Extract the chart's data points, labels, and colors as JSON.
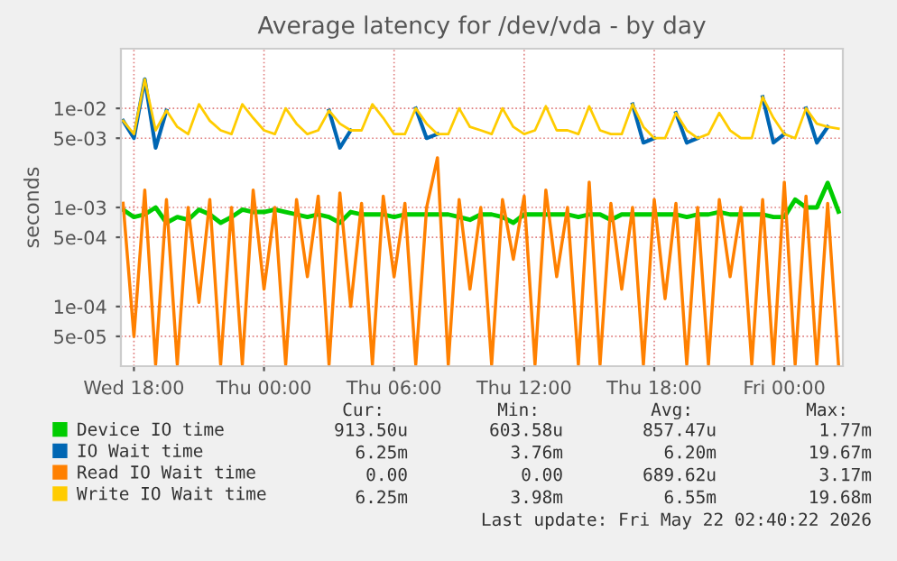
{
  "chart_data": {
    "type": "line",
    "title": "Average latency for /dev/vda - by day",
    "ylabel": "seconds",
    "x": [
      "2026-05-20T17:30",
      "2026-05-20T18:00",
      "2026-05-20T18:30",
      "2026-05-20T19:00",
      "2026-05-20T19:30",
      "2026-05-20T20:00",
      "2026-05-20T20:30",
      "2026-05-20T21:00",
      "2026-05-20T21:30",
      "2026-05-20T22:00",
      "2026-05-20T22:30",
      "2026-05-20T23:00",
      "2026-05-20T23:30",
      "2026-05-21T00:00",
      "2026-05-21T00:30",
      "2026-05-21T01:00",
      "2026-05-21T01:30",
      "2026-05-21T02:00",
      "2026-05-21T02:30",
      "2026-05-21T03:00",
      "2026-05-21T03:30",
      "2026-05-21T04:00",
      "2026-05-21T04:30",
      "2026-05-21T05:00",
      "2026-05-21T05:30",
      "2026-05-21T06:00",
      "2026-05-21T06:30",
      "2026-05-21T07:00",
      "2026-05-21T07:30",
      "2026-05-21T08:00",
      "2026-05-21T08:30",
      "2026-05-21T09:00",
      "2026-05-21T09:30",
      "2026-05-21T10:00",
      "2026-05-21T10:30",
      "2026-05-21T11:00",
      "2026-05-21T11:30",
      "2026-05-21T12:00",
      "2026-05-21T12:30",
      "2026-05-21T13:00",
      "2026-05-21T13:30",
      "2026-05-21T14:00",
      "2026-05-21T14:30",
      "2026-05-21T15:00",
      "2026-05-21T15:30",
      "2026-05-21T16:00",
      "2026-05-21T16:30",
      "2026-05-21T17:00",
      "2026-05-21T17:30",
      "2026-05-21T18:00",
      "2026-05-21T18:30",
      "2026-05-21T19:00",
      "2026-05-21T19:30",
      "2026-05-21T20:00",
      "2026-05-21T20:30",
      "2026-05-21T21:00",
      "2026-05-21T21:30",
      "2026-05-21T22:00",
      "2026-05-21T22:30",
      "2026-05-21T23:00",
      "2026-05-21T23:30",
      "2026-05-22T00:00",
      "2026-05-22T00:30",
      "2026-05-22T01:00",
      "2026-05-22T01:30",
      "2026-05-22T02:00",
      "2026-05-22T02:30"
    ],
    "series": [
      {
        "name": "Device IO time",
        "color": "#00cc00",
        "values": [
          0.00095,
          0.0008,
          0.00085,
          0.001,
          0.0007,
          0.0008,
          0.00075,
          0.00095,
          0.00085,
          0.0007,
          0.0008,
          0.00095,
          0.0009,
          0.0009,
          0.00095,
          0.0009,
          0.00085,
          0.0008,
          0.00085,
          0.0008,
          0.0007,
          0.0009,
          0.00085,
          0.00085,
          0.00085,
          0.0008,
          0.00085,
          0.00085,
          0.00085,
          0.00085,
          0.00085,
          0.0008,
          0.00075,
          0.00085,
          0.00085,
          0.0008,
          0.0007,
          0.00085,
          0.00085,
          0.00085,
          0.00085,
          0.00085,
          0.0008,
          0.00085,
          0.00085,
          0.00075,
          0.00085,
          0.00085,
          0.00085,
          0.00085,
          0.00085,
          0.00085,
          0.0008,
          0.00085,
          0.00085,
          0.0009,
          0.00085,
          0.00085,
          0.00085,
          0.00085,
          0.0008,
          0.0008,
          0.0012,
          0.001,
          0.001,
          0.00177,
          0.00091
        ]
      },
      {
        "name": "IO Wait time",
        "color": "#0066b3",
        "values": [
          0.0075,
          0.005,
          0.0197,
          0.004,
          0.0095,
          null,
          null,
          null,
          null,
          null,
          null,
          null,
          null,
          null,
          null,
          null,
          null,
          null,
          null,
          0.0095,
          0.004,
          0.006,
          null,
          null,
          null,
          null,
          null,
          0.01,
          0.005,
          0.0055,
          null,
          null,
          null,
          null,
          null,
          null,
          null,
          null,
          null,
          null,
          null,
          null,
          null,
          null,
          null,
          null,
          null,
          0.011,
          0.0045,
          0.005,
          null,
          0.009,
          0.0045,
          0.005,
          null,
          null,
          null,
          null,
          null,
          0.013,
          0.0045,
          0.0055,
          null,
          0.01,
          0.0045,
          0.0065,
          null
        ]
      },
      {
        "name": "Read IO Wait time",
        "color": "#ff8000",
        "values": [
          0.0011,
          5e-05,
          0.0015,
          2.6e-05,
          0.0012,
          2.6e-05,
          0.001,
          0.00011,
          0.0012,
          2.6e-05,
          0.001,
          2.6e-05,
          0.0015,
          0.00015,
          0.001,
          2.6e-05,
          0.0012,
          0.0002,
          0.0013,
          2.6e-05,
          0.0014,
          0.0001,
          0.0011,
          2.6e-05,
          0.0013,
          0.0002,
          0.0011,
          2.6e-05,
          0.001,
          0.00317,
          2.6e-05,
          0.0012,
          0.00015,
          0.001,
          2.6e-05,
          0.0012,
          0.0003,
          0.0013,
          2.6e-05,
          0.0015,
          0.0002,
          0.001,
          2.6e-05,
          0.0018,
          2.6e-05,
          0.0011,
          0.00015,
          0.001,
          2.6e-05,
          0.0012,
          0.00012,
          0.0011,
          2.6e-05,
          0.001,
          2.6e-05,
          0.0012,
          0.0002,
          0.001,
          2.6e-05,
          0.0012,
          2.6e-05,
          0.0018,
          2.6e-05,
          0.0013,
          2.6e-05,
          0.0011,
          2.6e-05
        ]
      },
      {
        "name": "Write IO Wait time",
        "color": "#ffcc00",
        "values": [
          0.0075,
          0.0055,
          0.0197,
          0.006,
          0.0095,
          0.0065,
          0.0055,
          0.011,
          0.0075,
          0.006,
          0.0055,
          0.011,
          0.008,
          0.006,
          0.0055,
          0.01,
          0.007,
          0.0055,
          0.006,
          0.0095,
          0.007,
          0.006,
          0.006,
          0.011,
          0.008,
          0.0055,
          0.0055,
          0.01,
          0.007,
          0.0055,
          0.0055,
          0.01,
          0.0065,
          0.006,
          0.0055,
          0.01,
          0.0065,
          0.0055,
          0.006,
          0.0105,
          0.006,
          0.006,
          0.0055,
          0.0105,
          0.006,
          0.0055,
          0.0055,
          0.011,
          0.0065,
          0.005,
          0.005,
          0.009,
          0.006,
          0.005,
          0.0055,
          0.009,
          0.006,
          0.005,
          0.005,
          0.013,
          0.008,
          0.0055,
          0.005,
          0.01,
          0.007,
          0.0065,
          0.00625
        ]
      }
    ],
    "log": "y",
    "xlim": [
      "2026-05-20T17:24",
      "2026-05-22T02:42"
    ],
    "ylim": [
      2.5e-05,
      0.04
    ],
    "xticks": [
      {
        "value": "2026-05-20T18:00",
        "label": "Wed 18:00"
      },
      {
        "value": "2026-05-21T00:00",
        "label": "Thu 00:00"
      },
      {
        "value": "2026-05-21T06:00",
        "label": "Thu 06:00"
      },
      {
        "value": "2026-05-21T12:00",
        "label": "Thu 12:00"
      },
      {
        "value": "2026-05-21T18:00",
        "label": "Thu 18:00"
      },
      {
        "value": "2026-05-22T00:00",
        "label": "Fri 00:00"
      }
    ],
    "yticks": [
      {
        "value": 5e-05,
        "label": "5e-05"
      },
      {
        "value": 0.0001,
        "label": "1e-04"
      },
      {
        "value": 0.0005,
        "label": "5e-04"
      },
      {
        "value": 0.001,
        "label": "1e-03"
      },
      {
        "value": 0.005,
        "label": "5e-03"
      },
      {
        "value": 0.01,
        "label": "1e-02"
      }
    ],
    "grid": true,
    "legend": "bottom",
    "marker": "none",
    "line_style": "solid",
    "annotations": [
      "Cur:",
      "Min:",
      "Avg:",
      "Max:",
      "913.50u",
      "603.58u",
      "857.47u",
      "1.77m",
      "6.25m",
      "3.76m",
      "6.20m",
      "19.67m",
      "0.00",
      "0.00",
      "689.62u",
      "3.17m",
      "6.25m",
      "3.98m",
      "6.55m",
      "19.68m",
      "Last update: Fri May 22 02:40:22 2026"
    ]
  }
}
